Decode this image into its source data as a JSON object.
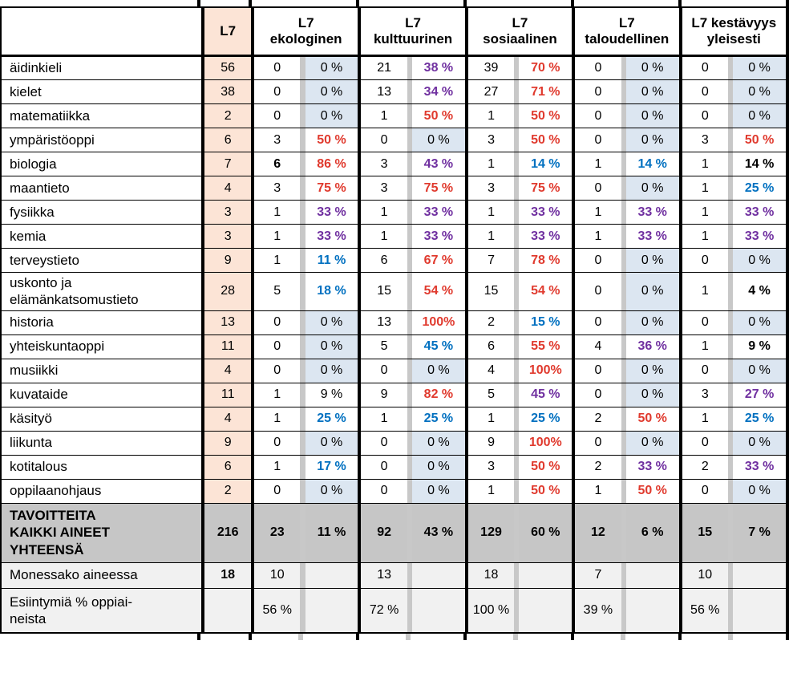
{
  "table": {
    "corner_label": "",
    "l7_header": "L7",
    "groups": [
      {
        "line1": "L7",
        "line2": "ekologinen"
      },
      {
        "line1": "L7",
        "line2": "kulttuurinen"
      },
      {
        "line1": "L7",
        "line2": "sosiaalinen"
      },
      {
        "line1": "L7",
        "line2": "taloudellinen"
      },
      {
        "line1": "L7 kestävyys",
        "line2": "yleisesti"
      }
    ],
    "rows": [
      {
        "subject": "äidinkieli",
        "l7": "56",
        "cells": [
          {
            "n": "0",
            "p": "0 %",
            "c": "k",
            "bg": true
          },
          {
            "n": "21",
            "p": "38 %",
            "c": "p"
          },
          {
            "n": "39",
            "p": "70 %",
            "c": "r"
          },
          {
            "n": "0",
            "p": "0 %",
            "c": "k",
            "bg": true
          },
          {
            "n": "0",
            "p": "0 %",
            "c": "k",
            "bg": true
          }
        ]
      },
      {
        "subject": "kielet",
        "l7": "38",
        "cells": [
          {
            "n": "0",
            "p": "0 %",
            "c": "k",
            "bg": true
          },
          {
            "n": "13",
            "p": "34 %",
            "c": "p"
          },
          {
            "n": "27",
            "p": "71 %",
            "c": "r"
          },
          {
            "n": "0",
            "p": "0 %",
            "c": "k",
            "bg": true
          },
          {
            "n": "0",
            "p": "0 %",
            "c": "k",
            "bg": true
          }
        ]
      },
      {
        "subject": "matematiikka",
        "l7": "2",
        "cells": [
          {
            "n": "0",
            "p": "0 %",
            "c": "k",
            "bg": true
          },
          {
            "n": "1",
            "p": "50 %",
            "c": "r"
          },
          {
            "n": "1",
            "p": "50 %",
            "c": "r"
          },
          {
            "n": "0",
            "p": "0 %",
            "c": "k",
            "bg": true
          },
          {
            "n": "0",
            "p": "0 %",
            "c": "k",
            "bg": true
          }
        ]
      },
      {
        "subject": "ympäristöoppi",
        "l7": "6",
        "cells": [
          {
            "n": "3",
            "p": "50 %",
            "c": "r"
          },
          {
            "n": "0",
            "p": "0 %",
            "c": "k",
            "bg": true
          },
          {
            "n": "3",
            "p": "50 %",
            "c": "r"
          },
          {
            "n": "0",
            "p": "0 %",
            "c": "k",
            "bg": true
          },
          {
            "n": "3",
            "p": "50 %",
            "c": "r"
          }
        ]
      },
      {
        "subject": "biologia",
        "l7": "7",
        "cells": [
          {
            "n": "6",
            "nb": true,
            "p": "86 %",
            "c": "r"
          },
          {
            "n": "3",
            "p": "43 %",
            "c": "p"
          },
          {
            "n": "1",
            "p": "14 %",
            "c": "b"
          },
          {
            "n": "1",
            "p": "14 %",
            "c": "b"
          },
          {
            "n": "1",
            "p": "14 %",
            "c": "k",
            "b": true
          }
        ]
      },
      {
        "subject": "maantieto",
        "l7": "4",
        "cells": [
          {
            "n": "3",
            "p": "75 %",
            "c": "r"
          },
          {
            "n": "3",
            "p": "75 %",
            "c": "r"
          },
          {
            "n": "3",
            "p": "75 %",
            "c": "r"
          },
          {
            "n": "0",
            "p": "0 %",
            "c": "k",
            "bg": true
          },
          {
            "n": "1",
            "p": "25 %",
            "c": "b"
          }
        ]
      },
      {
        "subject": "fysiikka",
        "l7": "3",
        "cells": [
          {
            "n": "1",
            "p": "33 %",
            "c": "p"
          },
          {
            "n": "1",
            "p": "33 %",
            "c": "p"
          },
          {
            "n": "1",
            "p": "33 %",
            "c": "p"
          },
          {
            "n": "1",
            "p": "33 %",
            "c": "p"
          },
          {
            "n": "1",
            "p": "33 %",
            "c": "p"
          }
        ]
      },
      {
        "subject": "kemia",
        "l7": "3",
        "cells": [
          {
            "n": "1",
            "p": "33 %",
            "c": "p"
          },
          {
            "n": "1",
            "p": "33 %",
            "c": "p"
          },
          {
            "n": "1",
            "p": "33 %",
            "c": "p"
          },
          {
            "n": "1",
            "p": "33 %",
            "c": "p"
          },
          {
            "n": "1",
            "p": "33 %",
            "c": "p"
          }
        ]
      },
      {
        "subject": "terveystieto",
        "l7": "9",
        "cells": [
          {
            "n": "1",
            "p": "11 %",
            "c": "b"
          },
          {
            "n": "6",
            "p": "67 %",
            "c": "r"
          },
          {
            "n": "7",
            "p": "78 %",
            "c": "r"
          },
          {
            "n": "0",
            "p": "0 %",
            "c": "k",
            "bg": true
          },
          {
            "n": "0",
            "p": "0 %",
            "c": "k",
            "bg": true
          }
        ]
      },
      {
        "subject": "uskonto ja\nelämänkatsomustieto",
        "l7": "28",
        "cells": [
          {
            "n": "5",
            "p": "18 %",
            "c": "b"
          },
          {
            "n": "15",
            "p": "54 %",
            "c": "r"
          },
          {
            "n": "15",
            "p": "54 %",
            "c": "r"
          },
          {
            "n": "0",
            "p": "0 %",
            "c": "k",
            "bg": true
          },
          {
            "n": "1",
            "p": "4 %",
            "c": "k",
            "b": true
          }
        ]
      },
      {
        "subject": "historia",
        "l7": "13",
        "cells": [
          {
            "n": "0",
            "p": "0 %",
            "c": "k",
            "bg": true
          },
          {
            "n": "13",
            "p": "100%",
            "c": "r"
          },
          {
            "n": "2",
            "p": "15 %",
            "c": "b"
          },
          {
            "n": "0",
            "p": "0 %",
            "c": "k",
            "bg": true
          },
          {
            "n": "0",
            "p": "0 %",
            "c": "k",
            "bg": true
          }
        ]
      },
      {
        "subject": "yhteiskuntaoppi",
        "l7": "11",
        "cells": [
          {
            "n": "0",
            "p": "0 %",
            "c": "k",
            "bg": true
          },
          {
            "n": "5",
            "p": "45 %",
            "c": "b"
          },
          {
            "n": "6",
            "p": "55 %",
            "c": "r"
          },
          {
            "n": "4",
            "p": "36 %",
            "c": "p"
          },
          {
            "n": "1",
            "p": "9 %",
            "c": "k",
            "b": true
          }
        ]
      },
      {
        "subject": "musiikki",
        "l7": "4",
        "cells": [
          {
            "n": "0",
            "p": "0 %",
            "c": "k",
            "bg": true
          },
          {
            "n": "0",
            "p": "0 %",
            "c": "k",
            "bg": true
          },
          {
            "n": "4",
            "p": "100%",
            "c": "r"
          },
          {
            "n": "0",
            "p": "0 %",
            "c": "k",
            "bg": true
          },
          {
            "n": "0",
            "p": "0 %",
            "c": "k",
            "bg": true
          }
        ]
      },
      {
        "subject": "kuvataide",
        "l7": "11",
        "cells": [
          {
            "n": "1",
            "p": "9 %",
            "c": "k"
          },
          {
            "n": "9",
            "p": "82 %",
            "c": "r"
          },
          {
            "n": "5",
            "p": "45 %",
            "c": "p"
          },
          {
            "n": "0",
            "p": "0 %",
            "c": "k",
            "bg": true
          },
          {
            "n": "3",
            "p": "27 %",
            "c": "p"
          }
        ]
      },
      {
        "subject": "käsityö",
        "l7": "4",
        "cells": [
          {
            "n": "1",
            "p": "25 %",
            "c": "b"
          },
          {
            "n": "1",
            "p": "25 %",
            "c": "b"
          },
          {
            "n": "1",
            "p": "25 %",
            "c": "b"
          },
          {
            "n": "2",
            "p": "50 %",
            "c": "r"
          },
          {
            "n": "1",
            "p": "25 %",
            "c": "b"
          }
        ]
      },
      {
        "subject": "liikunta",
        "l7": "9",
        "cells": [
          {
            "n": "0",
            "p": "0 %",
            "c": "k",
            "bg": true
          },
          {
            "n": "0",
            "p": "0 %",
            "c": "k",
            "bg": true
          },
          {
            "n": "9",
            "p": "100%",
            "c": "r"
          },
          {
            "n": "0",
            "p": "0 %",
            "c": "k",
            "bg": true
          },
          {
            "n": "0",
            "p": "0 %",
            "c": "k",
            "bg": true
          }
        ]
      },
      {
        "subject": "kotitalous",
        "l7": "6",
        "cells": [
          {
            "n": "1",
            "p": "17 %",
            "c": "b"
          },
          {
            "n": "0",
            "p": "0 %",
            "c": "k",
            "bg": true
          },
          {
            "n": "3",
            "p": "50 %",
            "c": "r"
          },
          {
            "n": "2",
            "p": "33 %",
            "c": "p"
          },
          {
            "n": "2",
            "p": "33 %",
            "c": "p"
          }
        ]
      },
      {
        "subject": "oppilaanohjaus",
        "l7": "2",
        "cells": [
          {
            "n": "0",
            "p": "0 %",
            "c": "k",
            "bg": true
          },
          {
            "n": "0",
            "p": "0 %",
            "c": "k",
            "bg": true
          },
          {
            "n": "1",
            "p": "50 %",
            "c": "r"
          },
          {
            "n": "1",
            "p": "50 %",
            "c": "r"
          },
          {
            "n": "0",
            "p": "0 %",
            "c": "k",
            "bg": true
          }
        ]
      }
    ],
    "total_row": {
      "subject": "TAVOITTEITA\nKAIKKI AINEET\nYHTEENSÄ",
      "l7": "216",
      "cells": [
        {
          "n": "23",
          "p": "11 %"
        },
        {
          "n": "92",
          "p": "43 %"
        },
        {
          "n": "129",
          "p": "60 %"
        },
        {
          "n": "12",
          "p": "6 %"
        },
        {
          "n": "15",
          "p": "7 %"
        }
      ]
    },
    "count_row": {
      "subject": "Monessako aineessa",
      "l7": "18",
      "values": [
        "10",
        "13",
        "18",
        "7",
        "10"
      ]
    },
    "pct_row": {
      "subject": "Esiintymiä % oppiai-\nneista",
      "l7": "",
      "values": [
        "56 %",
        "72 %",
        "100 %",
        "39 %",
        "56 %"
      ]
    }
  },
  "colors": {
    "percent_red": "#e03a2e",
    "percent_purple": "#7030a0",
    "percent_blue": "#0070c0",
    "zero_cell_bg": "#dce6f1",
    "l7_column_bg": "#fce4d6",
    "total_row_bg": "#c6c6c6",
    "footer_row_bg": "#f1f1f1",
    "column_divider": "#c8c8c8"
  }
}
